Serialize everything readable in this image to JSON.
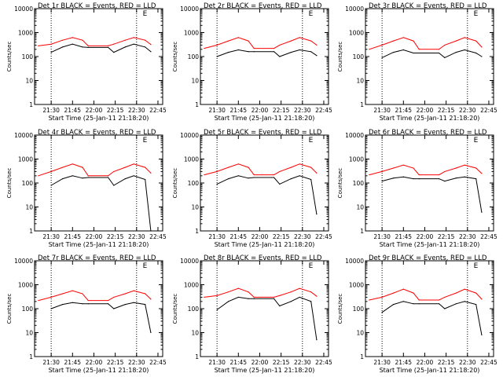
{
  "colors": {
    "events": "#000000",
    "lld": "#ff0000",
    "background": "#ffffff"
  },
  "shared": {
    "xlabel": "Start Time (25-Jan-11 21:18:20)",
    "ylabel": "Counts/sec",
    "xticklabels": [
      "21:30",
      "21:45",
      "22:00",
      "22:15",
      "22:30",
      "22:45"
    ],
    "yticklabels": [
      "1",
      "10",
      "100",
      "1000",
      "10000"
    ],
    "xlim_minutes_after_start": [
      0,
      90
    ],
    "vertical_dotted_lines": [
      "21:30",
      "22:30"
    ],
    "legend_mark": "E"
  },
  "chart_data": [
    {
      "type": "line",
      "title": "Det 1r BLACK = Events, RED = LLD",
      "yscale": "log",
      "ylim": [
        1,
        10000
      ],
      "x": [
        "21:21",
        "21:30",
        "21:38",
        "21:45",
        "21:52",
        "21:56",
        "22:10",
        "22:14",
        "22:22",
        "22:28",
        "22:36",
        "22:40"
      ],
      "series": [
        {
          "name": "BLACK = Events",
          "values": [
            null,
            150,
            250,
            330,
            250,
            240,
            240,
            150,
            250,
            330,
            250,
            160
          ]
        },
        {
          "name": "RED = LLD",
          "values": [
            280,
            330,
            480,
            620,
            480,
            280,
            280,
            330,
            480,
            620,
            480,
            320
          ]
        }
      ]
    },
    {
      "type": "line",
      "title": "Det 2r BLACK = Events, RED = LLD",
      "yscale": "log",
      "ylim": [
        1,
        10000
      ],
      "x": [
        "21:21",
        "21:30",
        "21:38",
        "21:45",
        "21:52",
        "21:56",
        "22:10",
        "22:14",
        "22:22",
        "22:28",
        "22:36",
        "22:40"
      ],
      "series": [
        {
          "name": "BLACK = Events",
          "values": [
            null,
            100,
            150,
            190,
            160,
            160,
            160,
            100,
            150,
            190,
            160,
            110
          ]
        },
        {
          "name": "RED = LLD",
          "values": [
            220,
            300,
            450,
            620,
            450,
            220,
            220,
            300,
            450,
            620,
            450,
            300
          ]
        }
      ]
    },
    {
      "type": "line",
      "title": "Det 3r BLACK = Events, RED = LLD",
      "yscale": "log",
      "ylim": [
        1,
        10000
      ],
      "x": [
        "21:21",
        "21:30",
        "21:38",
        "21:45",
        "21:52",
        "21:56",
        "22:10",
        "22:14",
        "22:22",
        "22:28",
        "22:36",
        "22:40"
      ],
      "series": [
        {
          "name": "BLACK = Events",
          "values": [
            null,
            90,
            150,
            190,
            140,
            140,
            140,
            90,
            150,
            190,
            140,
            100
          ]
        },
        {
          "name": "RED = LLD",
          "values": [
            200,
            300,
            450,
            620,
            450,
            200,
            200,
            300,
            450,
            620,
            450,
            250
          ]
        }
      ]
    },
    {
      "type": "line",
      "title": "Det 4r BLACK = Events, RED = LLD",
      "yscale": "log",
      "ylim": [
        1,
        10000
      ],
      "x": [
        "21:21",
        "21:30",
        "21:38",
        "21:45",
        "21:52",
        "21:56",
        "22:10",
        "22:14",
        "22:22",
        "22:28",
        "22:36",
        "22:40"
      ],
      "series": [
        {
          "name": "BLACK = Events",
          "values": [
            null,
            80,
            150,
            200,
            160,
            170,
            170,
            80,
            150,
            200,
            140,
            1
          ]
        },
        {
          "name": "RED = LLD",
          "values": [
            200,
            300,
            450,
            620,
            450,
            200,
            200,
            300,
            450,
            620,
            450,
            260
          ]
        }
      ]
    },
    {
      "type": "line",
      "title": "Det 5r BLACK = Events, RED = LLD",
      "yscale": "log",
      "ylim": [
        1,
        10000
      ],
      "x": [
        "21:21",
        "21:30",
        "21:38",
        "21:45",
        "21:52",
        "21:56",
        "22:10",
        "22:14",
        "22:22",
        "22:28",
        "22:36",
        "22:40"
      ],
      "series": [
        {
          "name": "BLACK = Events",
          "values": [
            null,
            90,
            150,
            200,
            160,
            170,
            170,
            90,
            150,
            200,
            140,
            5
          ]
        },
        {
          "name": "RED = LLD",
          "values": [
            220,
            300,
            450,
            620,
            450,
            220,
            220,
            300,
            450,
            620,
            450,
            260
          ]
        }
      ]
    },
    {
      "type": "line",
      "title": "Det 6r BLACK = Events, RED = LLD",
      "yscale": "log",
      "ylim": [
        1,
        10000
      ],
      "x": [
        "21:21",
        "21:30",
        "21:38",
        "21:45",
        "21:52",
        "21:56",
        "22:10",
        "22:14",
        "22:22",
        "22:28",
        "22:36",
        "22:40"
      ],
      "series": [
        {
          "name": "BLACK = Events",
          "values": [
            null,
            120,
            160,
            180,
            150,
            150,
            150,
            120,
            160,
            180,
            150,
            6
          ]
        },
        {
          "name": "RED = LLD",
          "values": [
            220,
            300,
            420,
            560,
            420,
            220,
            220,
            300,
            420,
            560,
            420,
            250
          ]
        }
      ]
    },
    {
      "type": "line",
      "title": "Det 7r BLACK = Events, RED = LLD",
      "yscale": "log",
      "ylim": [
        1,
        10000
      ],
      "x": [
        "21:21",
        "21:30",
        "21:38",
        "21:45",
        "21:52",
        "21:56",
        "22:10",
        "22:14",
        "22:22",
        "22:28",
        "22:36",
        "22:40"
      ],
      "series": [
        {
          "name": "BLACK = Events",
          "values": [
            null,
            100,
            150,
            180,
            160,
            160,
            160,
            100,
            150,
            180,
            150,
            10
          ]
        },
        {
          "name": "RED = LLD",
          "values": [
            220,
            300,
            420,
            560,
            420,
            220,
            220,
            300,
            420,
            560,
            420,
            250
          ]
        }
      ]
    },
    {
      "type": "line",
      "title": "Det 8r BLACK = Events, RED = LLD",
      "yscale": "log",
      "ylim": [
        1,
        10000
      ],
      "x": [
        "21:21",
        "21:30",
        "21:38",
        "21:45",
        "21:52",
        "21:56",
        "22:10",
        "22:14",
        "22:22",
        "22:28",
        "22:36",
        "22:40"
      ],
      "series": [
        {
          "name": "BLACK = Events",
          "values": [
            null,
            90,
            200,
            300,
            260,
            260,
            260,
            130,
            200,
            300,
            200,
            5
          ]
        },
        {
          "name": "RED = LLD",
          "values": [
            300,
            350,
            500,
            700,
            500,
            300,
            300,
            350,
            500,
            700,
            500,
            330
          ]
        }
      ]
    },
    {
      "type": "line",
      "title": "Det 9r BLACK = Events, RED = LLD",
      "yscale": "log",
      "ylim": [
        1,
        10000
      ],
      "x": [
        "21:21",
        "21:30",
        "21:38",
        "21:45",
        "21:52",
        "21:56",
        "22:10",
        "22:14",
        "22:22",
        "22:28",
        "22:36",
        "22:40"
      ],
      "series": [
        {
          "name": "BLACK = Events",
          "values": [
            null,
            70,
            150,
            200,
            160,
            160,
            160,
            100,
            160,
            200,
            150,
            8
          ]
        },
        {
          "name": "RED = LLD",
          "values": [
            230,
            300,
            450,
            650,
            450,
            230,
            230,
            300,
            450,
            650,
            450,
            250
          ]
        }
      ]
    }
  ]
}
